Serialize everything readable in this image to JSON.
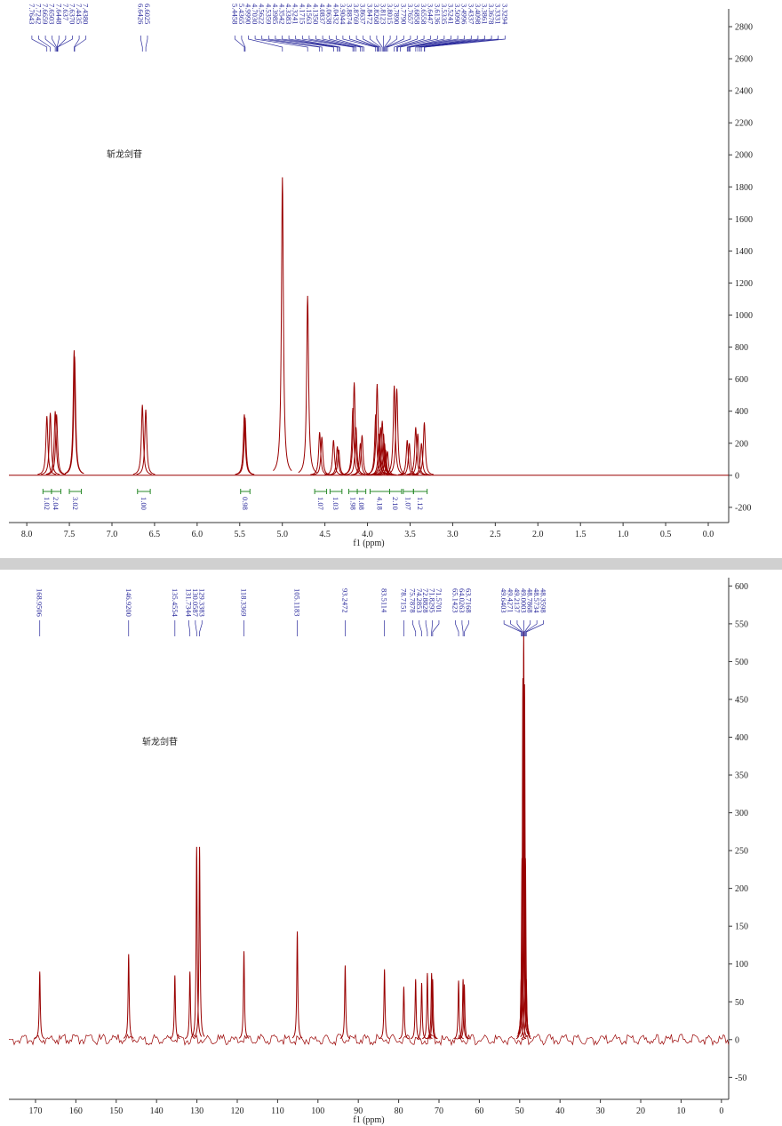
{
  "chart_data": [
    {
      "type": "spectrum",
      "annotation": "斩龙剑苷",
      "xlabel": "f1 (ppm)",
      "color": "#990000",
      "xlim": [
        8.21,
        -0.24
      ],
      "ylim": [
        -295,
        2911
      ],
      "xticks": [
        {
          "value": 8,
          "label": "8.0"
        },
        7.5,
        {
          "value": 7,
          "label": "7.0"
        },
        6.5,
        {
          "value": 6,
          "label": "6.0"
        },
        5.5,
        {
          "value": 5,
          "label": "5.0"
        },
        4.5,
        {
          "value": 4,
          "label": "4.0"
        },
        3.5,
        {
          "value": 3,
          "label": "3.0"
        },
        2.5,
        {
          "value": 2,
          "label": "2.0"
        },
        1.5,
        {
          "value": 1,
          "label": "1.0"
        },
        0.5,
        {
          "value": 0,
          "label": "0.0"
        }
      ],
      "yticks": [
        -200,
        0,
        200,
        400,
        600,
        800,
        1000,
        1200,
        1400,
        1600,
        1800,
        2000,
        2200,
        2400,
        2600,
        2800
      ],
      "x": [
        7.764,
        7.724,
        7.666,
        7.65,
        7.444,
        7.438,
        6.643,
        6.603,
        5.446,
        5.437,
        4.999,
        4.703,
        4.562,
        4.536,
        4.399,
        4.354,
        4.338,
        4.172,
        4.156,
        4.135,
        4.084,
        4.064,
        3.904,
        3.887,
        3.864,
        3.847,
        3.827,
        3.812,
        3.8,
        3.789,
        3.766,
        3.686,
        3.656,
        3.534,
        3.509,
        3.434,
        3.41,
        3.367,
        3.333
      ],
      "values": [
        370,
        390,
        400,
        380,
        780,
        740,
        440,
        410,
        380,
        360,
        1860,
        1120,
        270,
        240,
        220,
        180,
        160,
        420,
        580,
        300,
        200,
        250,
        380,
        570,
        260,
        300,
        340,
        260,
        200,
        160,
        150,
        560,
        540,
        220,
        200,
        300,
        260,
        200,
        330
      ],
      "peak_labels": [
        7.7643,
        7.7242,
        7.6659,
        7.6503,
        7.6448,
        7.637,
        {
          "value": 7.637,
          "label": "7.6370"
        },
        7.4435,
        {
          "value": 7.438,
          "label": "7.4380"
        },
        6.6426,
        6.6025,
        5.4458,
        5.4365,
        {
          "value": 4.999,
          "label": "4.9990"
        },
        {
          "value": 4.703,
          "label": "4.7030"
        },
        4.5622,
        4.5359,
        4.3985,
        4.3542,
        4.3383,
        4.3241,
        4.1715,
        4.1563,
        {
          "value": 4.135,
          "label": "4.1350"
        },
        4.0837,
        4.0638,
        4.0432,
        3.9044,
        3.8874,
        3.8769,
        3.8637,
        3.8472,
        3.8268,
        3.8123,
        3.8015,
        {
          "value": 3.789,
          "label": "3.7890"
        },
        {
          "value": 3.779,
          "label": "3.7790"
        },
        3.7657,
        3.6858,
        3.6558,
        3.6447,
        3.6136,
        3.5335,
        3.5241,
        {
          "value": 3.509,
          "label": "3.5090"
        },
        3.4996,
        3.4337,
        3.4098,
        3.3861,
        3.3678,
        3.3331,
        3.3294
      ],
      "integral_ranges": [
        [
          7.81,
          7.71
        ],
        [
          7.71,
          7.6
        ],
        [
          7.5,
          7.36
        ],
        [
          6.7,
          6.55
        ],
        [
          5.49,
          5.38
        ],
        [
          4.62,
          4.48
        ],
        [
          4.44,
          4.3
        ],
        [
          4.22,
          4.12
        ],
        [
          4.12,
          4.02
        ],
        [
          3.97,
          3.74
        ],
        [
          3.74,
          3.6
        ],
        [
          3.58,
          3.46
        ],
        [
          3.46,
          3.3
        ]
      ],
      "integrals": [
        1.02,
        2.04,
        3.02,
        {
          "value": 1,
          "label": "1.00"
        },
        0.98,
        1.07,
        1.03,
        1.98,
        1.08,
        4.18,
        {
          "value": 2.1,
          "label": "2.10"
        },
        1.07,
        1.12
      ]
    },
    {
      "type": "spectrum",
      "annotation": "斩龙剑苷",
      "xlabel": "f1 (ppm)",
      "color": "#990000",
      "xlim": [
        176.6,
        -1.8
      ],
      "ylim": [
        -79,
        611
      ],
      "xticks": [
        170,
        160,
        150,
        140,
        130,
        120,
        110,
        100,
        90,
        80,
        70,
        60,
        50,
        40,
        30,
        20,
        10,
        0
      ],
      "yticks": [
        -50,
        0,
        50,
        100,
        150,
        200,
        250,
        300,
        350,
        400,
        450,
        500,
        550,
        600
      ],
      "x": [
        168.95,
        146.92,
        135.46,
        131.73,
        130.06,
        129.34,
        118.34,
        105.12,
        93.25,
        83.51,
        78.72,
        75.79,
        74.29,
        72.88,
        71.83,
        71.57,
        65.14,
        64.03,
        63.72,
        49.64,
        49.43,
        49.21,
        49.0,
        48.79,
        48.57,
        48.36
      ],
      "values": [
        90,
        113,
        85,
        90,
        255,
        255,
        117,
        143,
        98,
        93,
        70,
        80,
        75,
        88,
        88,
        80,
        78,
        80,
        73,
        80,
        240,
        478,
        540,
        470,
        240,
        80
      ],
      "peak_labels": [
        168.9506,
        {
          "value": 146.92,
          "label": "146.9200"
        },
        135.4554,
        131.7344,
        130.0587,
        129.3383,
        118.3369,
        105.1183,
        93.2472,
        83.5114,
        78.7151,
        75.7878,
        74.2853,
        72.8828,
        71.8295,
        71.5701,
        65.1423,
        64.0263,
        63.7168,
        49.6403,
        49.4271,
        49.2137,
        49.0003,
        48.7868,
        48.5734,
        48.3598
      ]
    }
  ]
}
